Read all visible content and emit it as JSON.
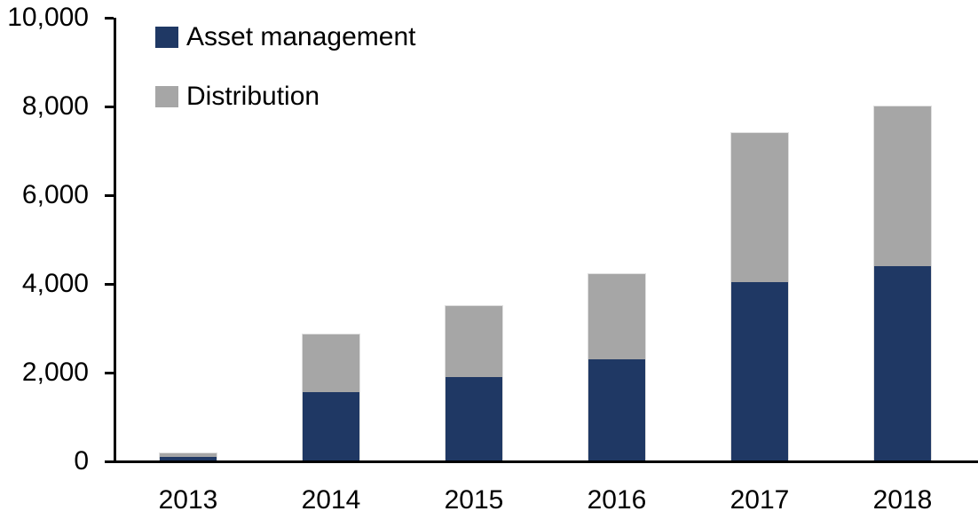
{
  "chart_data": {
    "type": "bar",
    "stacked": true,
    "title": "",
    "xlabel": "",
    "ylabel": "",
    "categories": [
      "2013",
      "2014",
      "2015",
      "2016",
      "2017",
      "2018"
    ],
    "series": [
      {
        "name": "Asset management",
        "color": "#1F3864",
        "values": [
          100,
          1560,
          1900,
          2300,
          4050,
          4400
        ]
      },
      {
        "name": "Distribution",
        "color": "#A6A6A6",
        "values": [
          80,
          1300,
          1600,
          1930,
          3350,
          3600
        ]
      }
    ],
    "ylim": [
      0,
      10000
    ],
    "yticks": [
      {
        "value": 0,
        "label": "0"
      },
      {
        "value": 2000,
        "label": "2,000"
      },
      {
        "value": 4000,
        "label": "4,000"
      },
      {
        "value": 6000,
        "label": "6,000"
      },
      {
        "value": 8000,
        "label": "8,000"
      },
      {
        "value": 10000,
        "label": "10,000"
      }
    ],
    "legend_position": "top-left-inside",
    "grid": false,
    "axis_color": "#000000",
    "background_color": "#FFFFFF"
  }
}
